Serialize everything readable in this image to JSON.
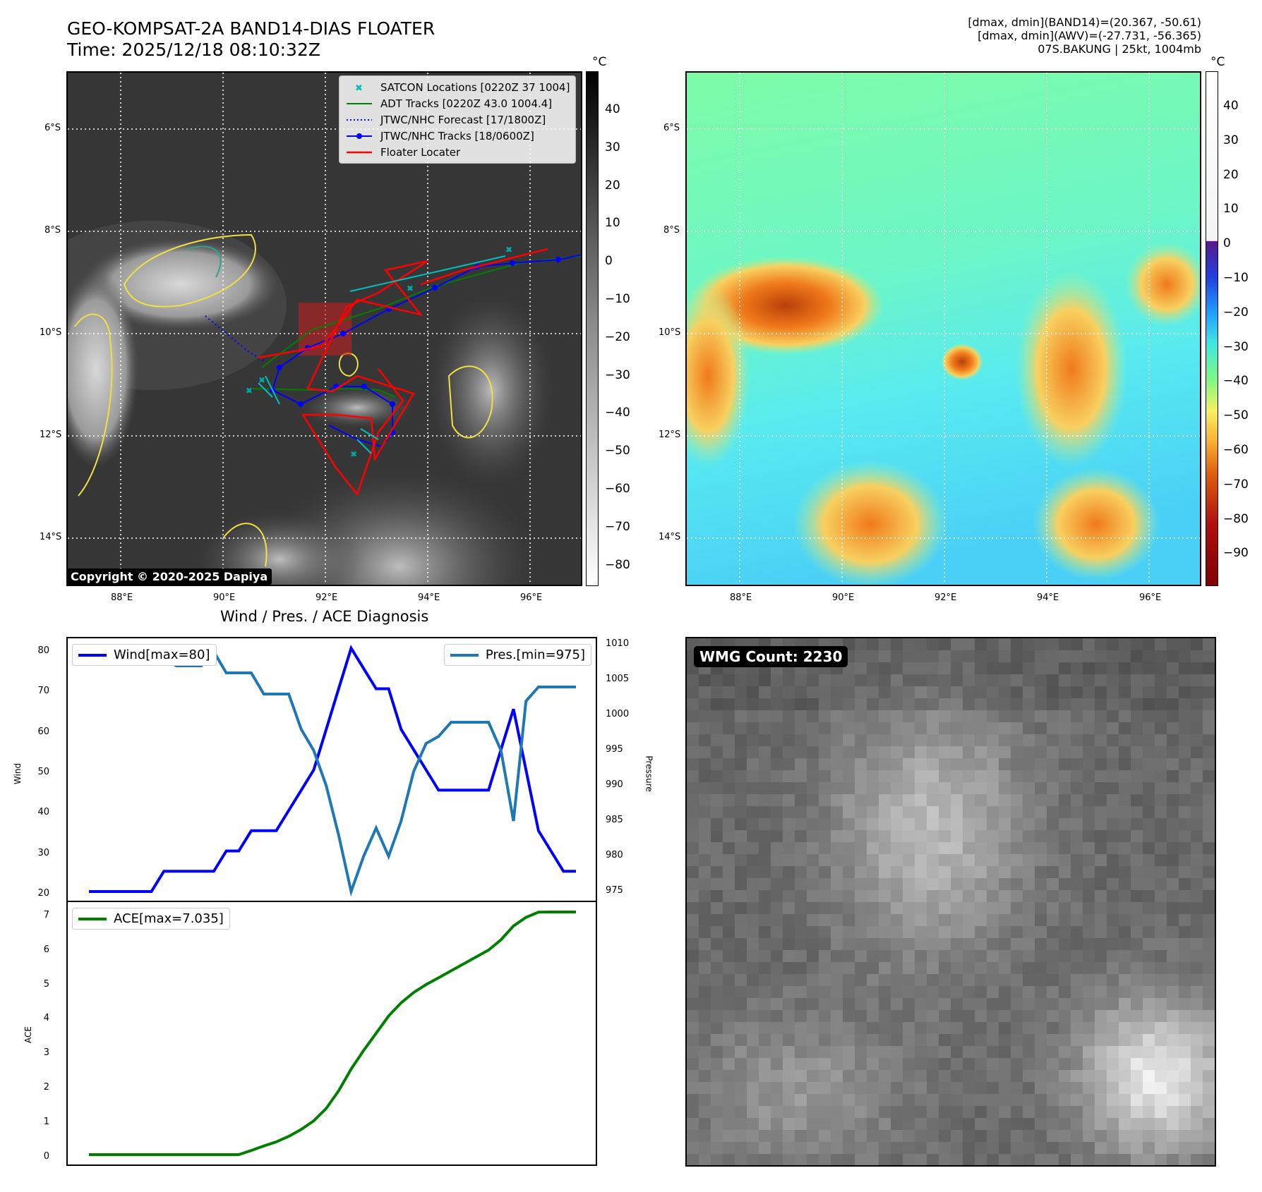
{
  "header": {
    "title": "GEO-KOMPSAT-2A BAND14-DIAS FLOATER",
    "time": "Time: 2025/12/18 08:10:32Z",
    "info_line1": "[dmax, dmin](BAND14)=(20.367, -50.61)",
    "info_line2": "[dmax, dmin](AWV)=(-27.731, -56.365)",
    "info_line3": "07S.BAKUNG | 25kt, 1004mb"
  },
  "map_axes": {
    "lon_labels": [
      "88°E",
      "90°E",
      "92°E",
      "94°E",
      "96°E"
    ],
    "lat_labels": [
      "6°S",
      "8°S",
      "10°S",
      "12°S",
      "14°S"
    ]
  },
  "ir_panel": {
    "legend": [
      {
        "label": "SATCON Locations [0220Z 37 1004]",
        "color": "#00c0c0",
        "kind": "x"
      },
      {
        "label": "ADT Tracks [0220Z 43.0 1004.4]",
        "color": "#008000",
        "kind": "line"
      },
      {
        "label": "JTWC/NHC Forecast [17/1800Z]",
        "color": "#0000ff",
        "kind": "dotted"
      },
      {
        "label": "JTWC/NHC Tracks [18/0600Z]",
        "color": "#0000ff",
        "kind": "line-dot"
      },
      {
        "label": "Floater Locater",
        "color": "#ff0000",
        "kind": "line"
      }
    ],
    "copyright": "Copyright © 2020-2025 Dapiya",
    "colorbar_unit": "°C",
    "colorbar_ticks": [
      "40",
      "30",
      "20",
      "10",
      "0",
      "−10",
      "−20",
      "−30",
      "−40",
      "−50",
      "−60",
      "−70",
      "−80"
    ]
  },
  "awv_panel": {
    "colorbar_unit": "°C",
    "colorbar_ticks": [
      "40",
      "30",
      "20",
      "10",
      "0",
      "−10",
      "−20",
      "−30",
      "−40",
      "−50",
      "−60",
      "−70",
      "−80",
      "−90"
    ]
  },
  "diagnosis": {
    "title": "Wind / Pres. / ACE Diagnosis",
    "wind_legend": "Wind[max=80]",
    "pres_legend": "Pres.[min=975]",
    "ace_legend": "ACE[max=7.035]",
    "wind_ylabel": "Wind",
    "pres_ylabel": "Pressure",
    "ace_ylabel": "ACE",
    "wind_ticks": [
      "80",
      "70",
      "60",
      "50",
      "40",
      "30",
      "20"
    ],
    "pres_ticks": [
      "1010",
      "1005",
      "1000",
      "995",
      "990",
      "985",
      "980",
      "975"
    ],
    "ace_ticks": [
      "7",
      "6",
      "5",
      "4",
      "3",
      "2",
      "1",
      "0"
    ],
    "colors": {
      "wind": "#0000ff",
      "pres": "#1f77b4",
      "ace": "#008000"
    }
  },
  "wmg": {
    "badge": "WMG Count: 2230"
  },
  "chart_data": [
    {
      "type": "line",
      "title": "Wind / Pres. / ACE Diagnosis",
      "ylabel": "Wind",
      "ylim": [
        20,
        80
      ],
      "series": [
        {
          "name": "Wind[max=80]",
          "values": [
            20,
            20,
            20,
            20,
            20,
            20,
            25,
            25,
            25,
            25,
            25,
            30,
            30,
            35,
            35,
            35,
            40,
            45,
            50,
            60,
            70,
            80,
            75,
            70,
            70,
            60,
            55,
            50,
            45,
            45,
            45,
            45,
            45,
            55,
            65,
            50,
            35,
            30,
            25,
            25
          ]
        }
      ]
    },
    {
      "type": "line",
      "ylabel": "Pressure",
      "ylim": [
        975,
        1010
      ],
      "series": [
        {
          "name": "Pres.[min=975]",
          "values": [
            1008,
            1008,
            1008,
            1008,
            1008,
            1008,
            1008,
            1007,
            1007,
            1007,
            1009,
            1006,
            1006,
            1006,
            1003,
            1003,
            1003,
            998,
            995,
            990,
            983,
            975,
            980,
            984,
            980,
            985,
            992,
            996,
            997,
            999,
            999,
            999,
            999,
            995,
            985,
            1002,
            1004,
            1004,
            1004,
            1004
          ]
        }
      ]
    },
    {
      "type": "line",
      "ylabel": "ACE",
      "ylim": [
        0,
        7.035
      ],
      "series": [
        {
          "name": "ACE[max=7.035]",
          "values": [
            0,
            0,
            0,
            0,
            0,
            0,
            0,
            0,
            0,
            0,
            0,
            0,
            0,
            0.12,
            0.25,
            0.37,
            0.53,
            0.73,
            0.98,
            1.34,
            1.85,
            2.48,
            3.02,
            3.52,
            4.02,
            4.4,
            4.7,
            4.93,
            5.13,
            5.33,
            5.53,
            5.73,
            5.93,
            6.23,
            6.63,
            6.88,
            7.03,
            7.035,
            7.035,
            7.035
          ]
        }
      ]
    }
  ]
}
